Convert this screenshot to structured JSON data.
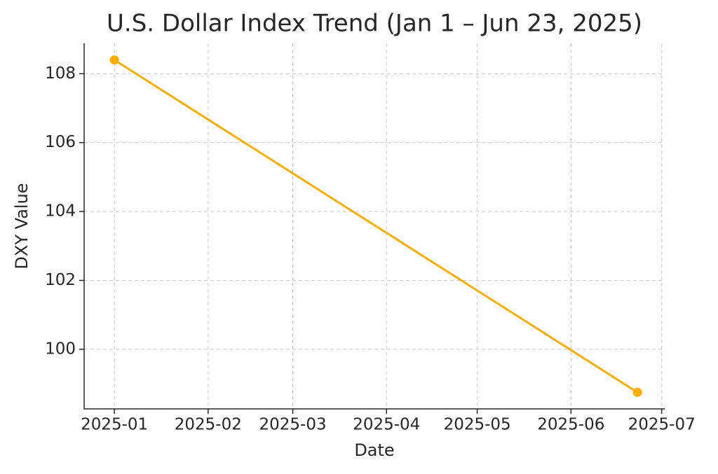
{
  "chart_data": {
    "type": "line",
    "title": "U.S. Dollar Index Trend (Jan 1 – Jun 23, 2025)",
    "x_label": "Date",
    "y_label": "DXY Value",
    "x": [
      "2025-01-01",
      "2025-06-23"
    ],
    "values": [
      108.4,
      98.75
    ],
    "color": "#ffae00",
    "xlim": [
      "2024-12-22",
      "2025-07-02"
    ],
    "xticks": [
      {
        "value": "2025-01-01",
        "label": "2025-01"
      },
      {
        "value": "2025-02-01",
        "label": "2025-02"
      },
      {
        "value": "2025-03-01",
        "label": "2025-03"
      },
      {
        "value": "2025-04-01",
        "label": "2025-04"
      },
      {
        "value": "2025-05-01",
        "label": "2025-05"
      },
      {
        "value": "2025-06-01",
        "label": "2025-06"
      },
      {
        "value": "2025-07-01",
        "label": "2025-07"
      }
    ],
    "ylim": [
      98.27,
      108.88
    ],
    "yticks": [
      100,
      102,
      104,
      106,
      108
    ],
    "grid": true
  }
}
